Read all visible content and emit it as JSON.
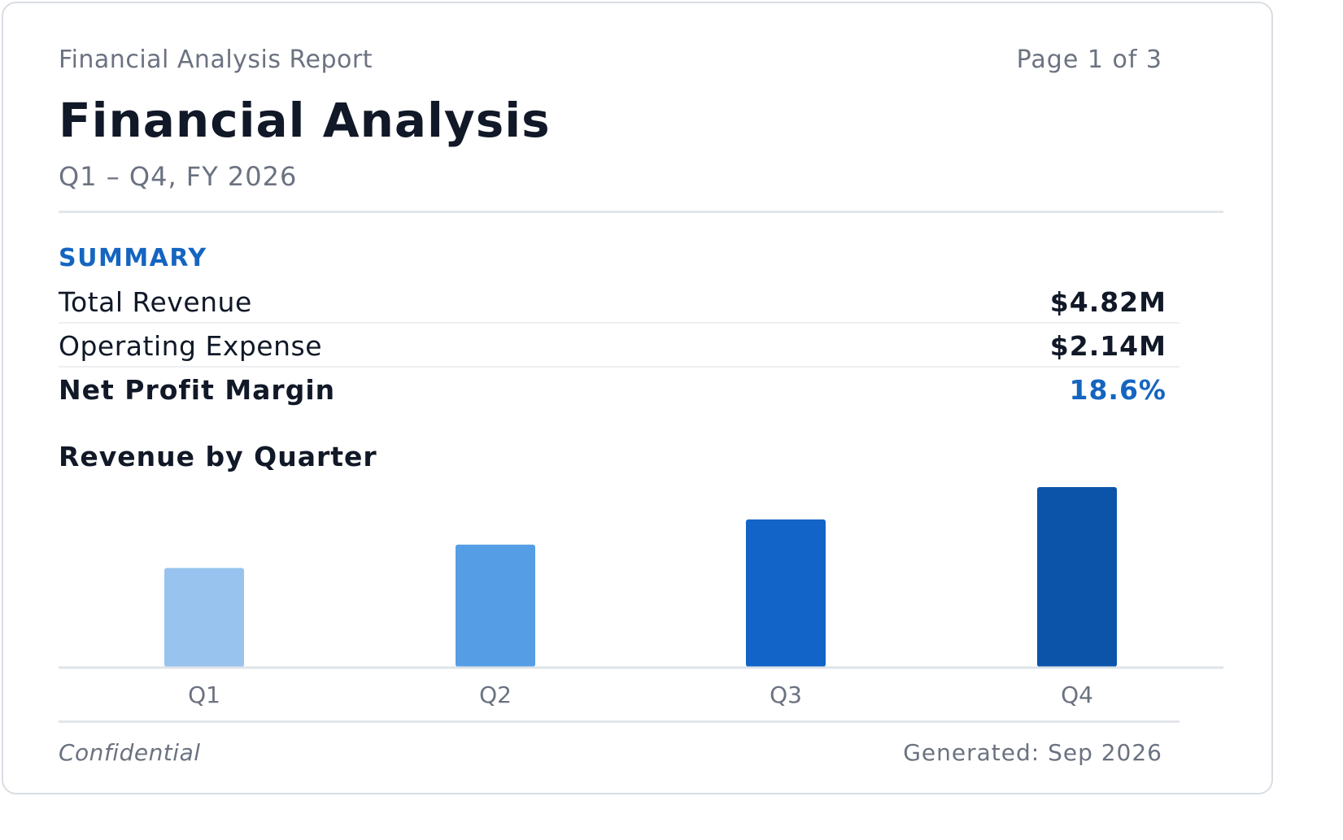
{
  "header": {
    "report_name": "Financial Analysis Report",
    "page_indicator": "Page 1 of 3"
  },
  "title": "Financial Analysis",
  "subtitle": "Q1 – Q4, FY 2026",
  "summary": {
    "label": "SUMMARY",
    "rows": [
      {
        "label": "Total Revenue",
        "value": "$4.82M"
      },
      {
        "label": "Operating Expense",
        "value": "$2.14M"
      },
      {
        "label": "Net Profit Margin",
        "value": "18.6%"
      }
    ]
  },
  "chart_title": "Revenue by Quarter",
  "chart_data": {
    "type": "bar",
    "categories": [
      "Q1",
      "Q2",
      "Q3",
      "Q4"
    ],
    "values": [
      0.55,
      0.68,
      0.82,
      1.0
    ],
    "ylim": [
      0,
      1
    ],
    "grid": false,
    "colors": [
      "#97c3ee",
      "#559ee5",
      "#1264c8",
      "#0c54aa"
    ]
  },
  "footer": {
    "left": "Confidential",
    "right": "Generated: Sep 2026"
  },
  "colors": {
    "accent": "#1565c0",
    "text": "#111827",
    "muted": "#6b7280"
  }
}
